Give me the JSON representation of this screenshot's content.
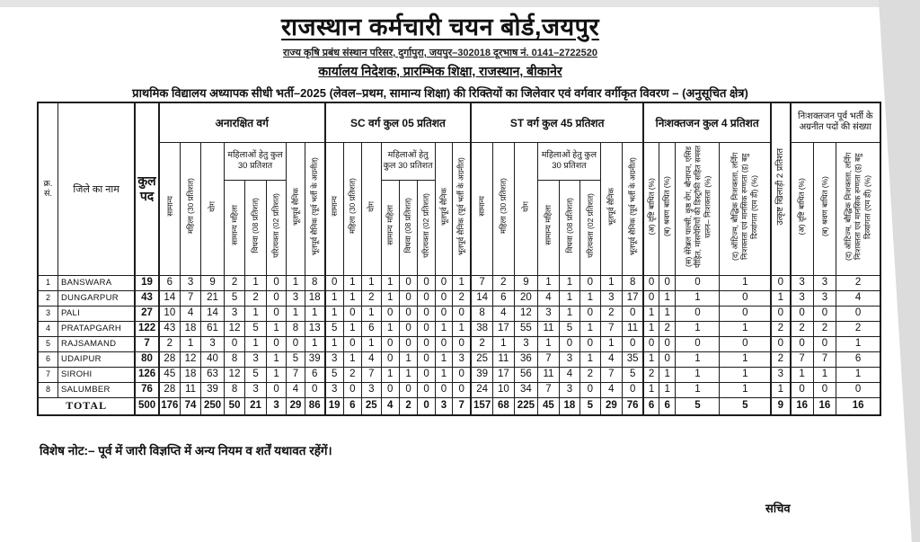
{
  "colors": {
    "page_bg": "#ffffff",
    "scan_edge": "#dcdcdc",
    "table_border": "#1c1c1c"
  },
  "header": {
    "title": "राजस्थान कर्मचारी चयन बोर्ड,जयपुर",
    "address_line": "राज्य कृषि प्रबंध संस्थान परिसर, दुर्गापुरा, जयपुर–302018 दूरभाष नं. 0141–2722520",
    "office_line": "कार्यालय निदेशक, प्रारम्भिक शिक्षा, राजस्थान, बीकानेर",
    "description_line": "प्राथमिक विद्यालय अध्यापक सीधी भर्ती–2025 (लेवल–प्रथम, सामान्य शिक्षा) की रिक्तियों का जिलेवार एवं वर्गवार वर्गीकृत विवरण – (अनुसूचित क्षेत्र)"
  },
  "table": {
    "headers": {
      "sn": "क्र. सं.",
      "district": "जिले का नाम",
      "total_posts": "कुल पद",
      "group_unreserved": "अनारक्षित वर्ग",
      "group_sc": "SC वर्ग कुल 05 प्रतिशत",
      "group_st": "ST वर्ग कुल 45 प्रतिशत",
      "group_disabled": "निःशक्तजन कुल 4 प्रतिशत",
      "group_sports": "उत्कृष्ट खिलाड़ी 2 प्रतिशत",
      "group_carryforward": "निःशक्तजन पूर्व भर्ती के अग्रनीत पदों की संख्या",
      "general": "सामान्य",
      "female30": "महिला (30 प्रतिशत)",
      "yog": "योग",
      "women_subgroup": "महिलाओं हेतु कुल 30 प्रतिशत",
      "general_female": "सामान्य महिला",
      "widow": "विधवा (08 प्रतिशत)",
      "deserted": "परित्यक्ता (02 प्रतिशत)",
      "ex_serviceman": "भूतपूर्व सैनिक",
      "ex_serviceman_carry": "भूतपूर्व सैनिक (पूर्व भर्ती के अग्रनीत)",
      "dis_a": "(अ) दृष्टि बाधित (%)",
      "dis_b": "(ब) श्रवण बाधित (%)",
      "dis_c": "(स) सेरेब्रल पाल्सी, कुष्ठ रोग, बौनापन, एसिड पीड़ित, मांसपेशियों की डिस्ट्रॉफी सहित समस्त चलन– निःशक्तता (%)",
      "dis_d": "(द) ऑटिज्म, बौद्धिक निःशक्तता, लर्निंग निःशक्तता एवं मानसिक रुग्णता (इ) बहु दिव्यांगता (एम डी) (%)"
    },
    "rows": [
      {
        "sn": "1",
        "district": "BANSWARA",
        "values": [
          19,
          6,
          3,
          9,
          2,
          1,
          0,
          1,
          8,
          0,
          1,
          1,
          1,
          0,
          0,
          0,
          1,
          7,
          2,
          9,
          1,
          1,
          0,
          1,
          8,
          0,
          0,
          0,
          1,
          0,
          3,
          3,
          2
        ]
      },
      {
        "sn": "2",
        "district": "DUNGARPUR",
        "values": [
          43,
          14,
          7,
          21,
          5,
          2,
          0,
          3,
          18,
          1,
          1,
          2,
          1,
          0,
          0,
          0,
          2,
          14,
          6,
          20,
          4,
          1,
          1,
          3,
          17,
          0,
          1,
          1,
          0,
          1,
          3,
          3,
          4
        ]
      },
      {
        "sn": "3",
        "district": "PALI",
        "values": [
          27,
          10,
          4,
          14,
          3,
          1,
          0,
          1,
          1,
          1,
          0,
          1,
          0,
          0,
          0,
          0,
          0,
          8,
          4,
          12,
          3,
          1,
          0,
          2,
          0,
          1,
          1,
          0,
          0,
          0,
          0,
          0,
          0
        ]
      },
      {
        "sn": "4",
        "district": "PRATAPGARH",
        "values": [
          122,
          43,
          18,
          61,
          12,
          5,
          1,
          8,
          13,
          5,
          1,
          6,
          1,
          0,
          0,
          1,
          1,
          38,
          17,
          55,
          11,
          5,
          1,
          7,
          11,
          1,
          2,
          1,
          1,
          2,
          2,
          2,
          2
        ]
      },
      {
        "sn": "5",
        "district": "RAJSAMAND",
        "values": [
          7,
          2,
          1,
          3,
          0,
          1,
          0,
          0,
          1,
          1,
          0,
          1,
          0,
          0,
          0,
          0,
          0,
          2,
          1,
          3,
          1,
          0,
          0,
          1,
          0,
          0,
          0,
          0,
          0,
          0,
          0,
          0,
          1
        ]
      },
      {
        "sn": "6",
        "district": "UDAIPUR",
        "values": [
          80,
          28,
          12,
          40,
          8,
          3,
          1,
          5,
          39,
          3,
          1,
          4,
          0,
          1,
          0,
          1,
          3,
          25,
          11,
          36,
          7,
          3,
          1,
          4,
          35,
          1,
          0,
          1,
          1,
          2,
          7,
          7,
          6
        ]
      },
      {
        "sn": "7",
        "district": "SIROHI",
        "values": [
          126,
          45,
          18,
          63,
          12,
          5,
          1,
          7,
          6,
          5,
          2,
          7,
          1,
          1,
          0,
          1,
          0,
          39,
          17,
          56,
          11,
          4,
          2,
          7,
          5,
          2,
          1,
          1,
          1,
          3,
          1,
          1,
          1
        ]
      },
      {
        "sn": "8",
        "district": "SALUMBER",
        "values": [
          76,
          28,
          11,
          39,
          8,
          3,
          0,
          4,
          0,
          3,
          0,
          3,
          0,
          0,
          0,
          0,
          0,
          24,
          10,
          34,
          7,
          3,
          0,
          4,
          0,
          1,
          1,
          1,
          1,
          1,
          0,
          0,
          0
        ]
      }
    ],
    "total_row": {
      "label": "TOTAL",
      "values": [
        500,
        176,
        74,
        250,
        50,
        21,
        3,
        29,
        86,
        19,
        6,
        25,
        4,
        2,
        0,
        3,
        7,
        157,
        68,
        225,
        45,
        18,
        5,
        29,
        76,
        6,
        6,
        5,
        5,
        9,
        16,
        16,
        16
      ]
    }
  },
  "footer": {
    "note": "विशेष नोट:– पूर्व में जारी विज्ञप्ति में अन्य नियम व शर्तें यथावत रहेंगें।",
    "signature": "सचिव"
  }
}
